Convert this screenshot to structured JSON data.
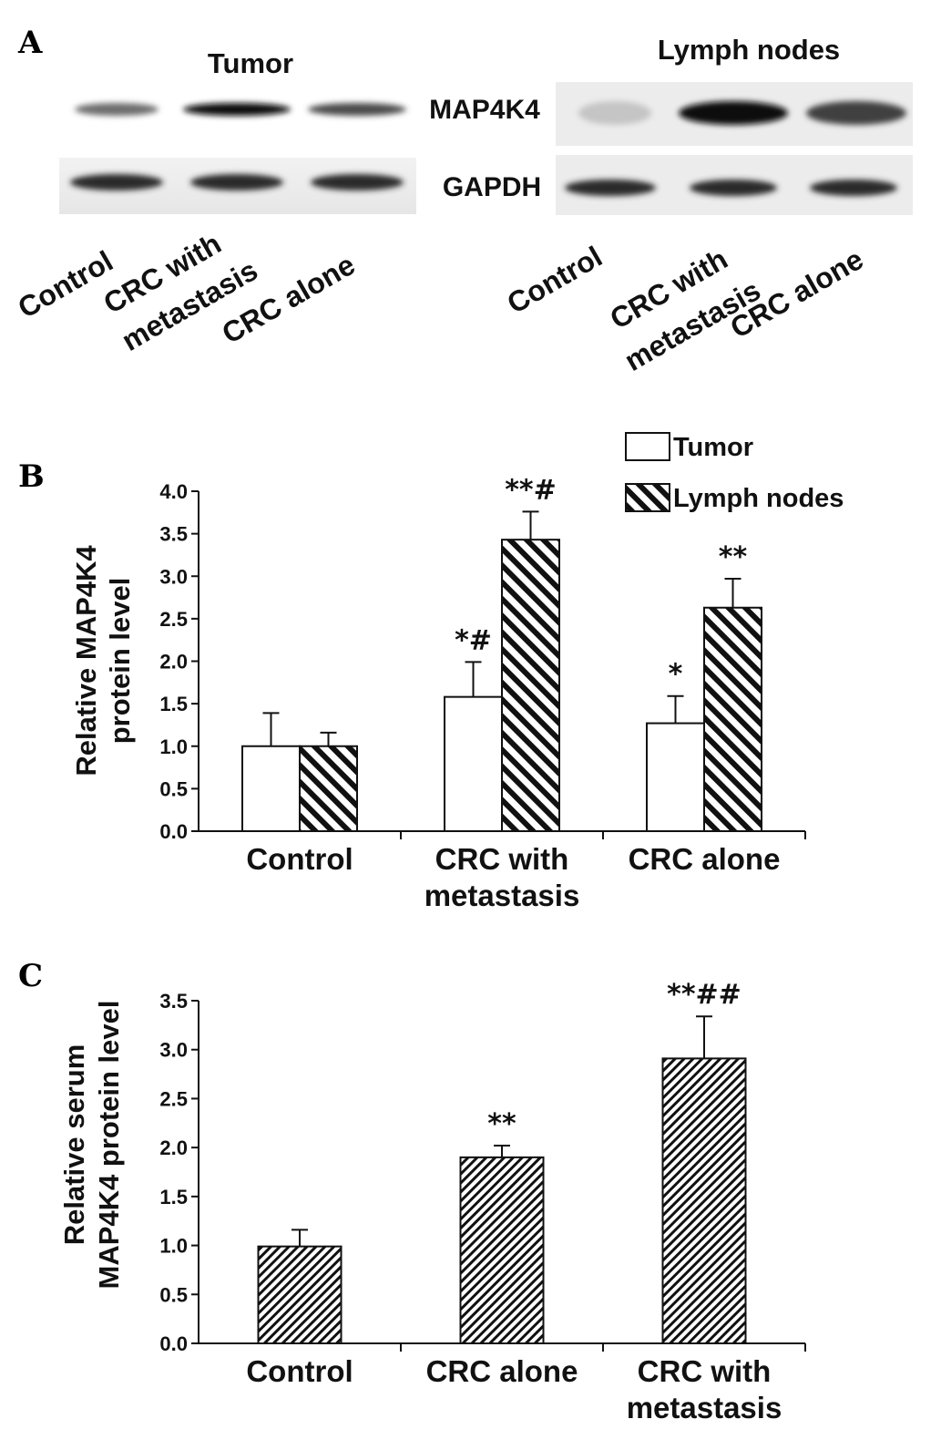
{
  "panels": {
    "a": "A",
    "b": "B",
    "c": "C"
  },
  "blot": {
    "left_title": "Tumor",
    "right_title": "Lymph nodes",
    "row_labels": [
      "MAP4K4",
      "GAPDH"
    ],
    "lanes_left": [
      "Control",
      "CRC with metastasis",
      "CRC alone"
    ],
    "lanes_right": [
      "Control",
      "CRC with metastasis",
      "CRC alone"
    ],
    "lane_text": {
      "control": "Control",
      "crc_with": "CRC with",
      "metastasis": "metastasis",
      "crc_alone": "CRC alone"
    },
    "map4k4_intensity_left": [
      0.55,
      1.0,
      0.7
    ],
    "map4k4_intensity_right": [
      0.15,
      1.0,
      0.75
    ],
    "gapdh_intensity_left": [
      0.85,
      0.85,
      0.85
    ],
    "gapdh_intensity_right": [
      0.85,
      0.85,
      0.85
    ]
  },
  "chart_data": [
    {
      "type": "bar",
      "ylabel_line1": "Relative MAP4K4",
      "ylabel_line2": "protein level",
      "ylim": [
        0,
        4.0
      ],
      "yticks": [
        "0.0",
        "0.5",
        "1.0",
        "1.5",
        "2.0",
        "2.5",
        "3.0",
        "3.5",
        "4.0"
      ],
      "categories": [
        {
          "line1": "Control",
          "line2": ""
        },
        {
          "line1": "CRC with",
          "line2": "metastasis"
        },
        {
          "line1": "CRC alone",
          "line2": ""
        }
      ],
      "legend": [
        "Tumor",
        "Lymph nodes"
      ],
      "legend_position": "top-right",
      "series": [
        {
          "name": "Tumor",
          "pattern": "open",
          "values": [
            1.0,
            1.58,
            1.27
          ],
          "errors": [
            0.39,
            0.41,
            0.32
          ],
          "sig": [
            "",
            "*#",
            "*"
          ]
        },
        {
          "name": "Lymph nodes",
          "pattern": "hatched",
          "values": [
            1.0,
            3.43,
            2.63
          ],
          "errors": [
            0.16,
            0.33,
            0.34
          ],
          "sig": [
            "",
            "**#",
            "**"
          ]
        }
      ]
    },
    {
      "type": "bar",
      "ylabel_line1": "Relative serum",
      "ylabel_line2": "MAP4K4 protein level",
      "ylim": [
        0,
        3.5
      ],
      "yticks": [
        "0.0",
        "0.5",
        "1.0",
        "1.5",
        "2.0",
        "2.5",
        "3.0",
        "3.5"
      ],
      "categories": [
        {
          "line1": "Control",
          "line2": ""
        },
        {
          "line1": "CRC alone",
          "line2": ""
        },
        {
          "line1": "CRC with",
          "line2": "metastasis"
        }
      ],
      "series": [
        {
          "name": "",
          "pattern": "hatched",
          "values": [
            0.99,
            1.9,
            2.91
          ],
          "errors": [
            0.17,
            0.12,
            0.43
          ],
          "sig": [
            "",
            "**",
            "**##"
          ]
        }
      ]
    }
  ]
}
